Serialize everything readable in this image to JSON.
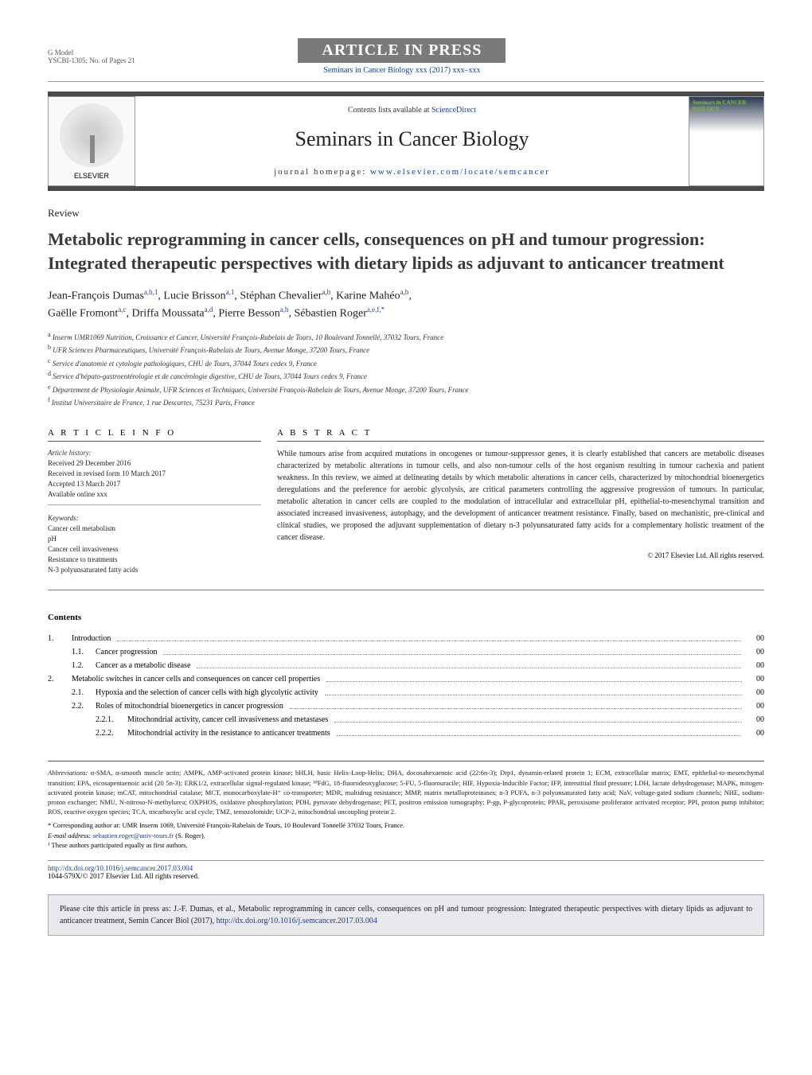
{
  "header": {
    "gmodel": "G Model",
    "model_ref": "YSCBI-1305;   No. of Pages 21",
    "aip": "ARTICLE IN PRESS",
    "citation_link": "Seminars in Cancer Biology xxx (2017) xxx–xxx"
  },
  "banner": {
    "contents_prefix": "Contents lists available at ",
    "contents_link": "ScienceDirect",
    "journal": "Seminars in Cancer Biology",
    "homepage_label": "journal homepage: ",
    "homepage_url": "www.elsevier.com/locate/semcancer",
    "elsevier": "ELSEVIER",
    "cover": "Seminars in CANCER BIOLOGY"
  },
  "article": {
    "review": "Review",
    "title": "Metabolic reprogramming in cancer cells, consequences on pH and tumour progression: Integrated therapeutic perspectives with dietary lipids as adjuvant to anticancer treatment",
    "authors_line1_a": "Jean-François Dumas",
    "authors_sup1": "a,b,1",
    "authors_line1_b": ", Lucie Brisson",
    "authors_sup2": "a,1",
    "authors_line1_c": ", Stéphan Chevalier",
    "authors_sup3": "a,b",
    "authors_line1_d": ", Karine Mahéo",
    "authors_sup4": "a,b",
    "authors_line1_e": ",",
    "authors_line2_a": "Gaëlle Fromont",
    "authors_sup5": "a,c",
    "authors_line2_b": ", Driffa Moussata",
    "authors_sup6": "a,d",
    "authors_line2_c": ", Pierre Besson",
    "authors_sup7": "a,b",
    "authors_line2_d": ", Sébastien Roger",
    "authors_sup8": "a,e,f,*"
  },
  "affiliations": {
    "a": "Inserm UMR1069 Nutrition, Croissance et Cancer, Université François-Rabelais de Tours, 10 Boulevard Tonnellé, 37032 Tours, France",
    "b": "UFR Sciences Pharmaceutiques, Université François-Rabelais de Tours, Avenue Monge, 37200 Tours, France",
    "c": "Service d'anatomie et cytologie pathologiques, CHU de Tours, 37044 Tours cedex 9, France",
    "d": "Service d'hépato-gastroentérologie et de cancérologie digestive, CHU de Tours, 37044 Tours cedex 9, France",
    "e": "Département de Physiologie Animale, UFR Sciences et Techniques, Université François-Rabelais de Tours, Avenue Monge, 37200 Tours, France",
    "f": "Institut Universitaire de France, 1 rue Descartes, 75231 Paris, France"
  },
  "info": {
    "heading": "A R T I C L E   I N F O",
    "history_label": "Article history:",
    "received": "Received 29 December 2016",
    "revised": "Received in revised form 10 March 2017",
    "accepted": "Accepted 13 March 2017",
    "online": "Available online xxx",
    "keywords_label": "Keywords:",
    "kw1": "Cancer cell metabolism",
    "kw2": "pH",
    "kw3": "Cancer cell invasiveness",
    "kw4": "Resistance to treatments",
    "kw5": "N-3 polyunsaturated fatty acids"
  },
  "abstract": {
    "heading": "A B S T R A C T",
    "text": "While tumours arise from acquired mutations in oncogenes or tumour-suppressor genes, it is clearly established that cancers are metabolic diseases characterized by metabolic alterations in tumour cells, and also non-tumour cells of the host organism resulting in tumour cachexia and patient weakness. In this review, we aimed at delineating details by which metabolic alterations in cancer cells, characterized by mitochondrial bioenergetics deregulations and the preference for aerobic glycolysis, are critical parameters controlling the aggressive progression of tumours. In particular, metabolic alteration in cancer cells are coupled to the modulation of intracellular and extracellular pH, epithelial-to-mesenchymal transition and associated increased invasiveness, autophagy, and the development of anticancer treatment resistance. Finally, based on mechanistic, pre-clinical and clinical studies, we proposed the adjuvant supplementation of dietary n-3 polyunsaturated fatty acids for a complementary holistic treatment of the cancer disease.",
    "copyright": "© 2017 Elsevier Ltd. All rights reserved."
  },
  "contents": {
    "heading": "Contents",
    "items": [
      {
        "level": 1,
        "num": "1.",
        "title": "Introduction",
        "page": "00"
      },
      {
        "level": 2,
        "num": "1.1.",
        "title": "Cancer progression",
        "page": "00"
      },
      {
        "level": 2,
        "num": "1.2.",
        "title": "Cancer as a metabolic disease",
        "page": "00"
      },
      {
        "level": 1,
        "num": "2.",
        "title": "Metabolic switches in cancer cells and consequences on cancer cell properties",
        "page": "00"
      },
      {
        "level": 2,
        "num": "2.1.",
        "title": "Hypoxia and the selection of cancer cells with high glycolytic activity",
        "page": "00"
      },
      {
        "level": 2,
        "num": "2.2.",
        "title": "Roles of mitochondrial bioenergetics in cancer progression",
        "page": "00"
      },
      {
        "level": 3,
        "num": "2.2.1.",
        "title": "Mitochondrial activity, cancer cell invasiveness and metastases",
        "page": "00"
      },
      {
        "level": 3,
        "num": "2.2.2.",
        "title": "Mitochondrial activity in the resistance to anticancer treatments",
        "page": "00"
      }
    ]
  },
  "footer": {
    "abbrev_label": "Abbreviations:",
    "abbrev_text": " α-SMA, α-smooth muscle actin; AMPK, AMP-activated protein kinase; bHLH, basic Helix-Loop-Helix; DHA, docosahexaenoic acid (22:6n-3); Drp1, dynamin-related protein 1; ECM, extracellular matrix; EMT, epithelial-to-mesenchymal transition; EPA, eicosapentaenoic acid (20 5n-3); ERK1/2, extracellular signal-regulated kinase; ¹⁸FdG, 18-fluorodeoxyglucose; 5-FU, 5-fluorouracile; HIF, Hypoxia-Inducible Factor; IFP, interstitial fluid pressure; LDH, lactate dehydrogenase; MAPK, mitogen-activated protein kinase; mCAT, mitochondrial catalase; MCT, monocarboxylate-H⁺ co-transporter; MDR, multidrug resistance; MMP, matrix metalloproteinases; n-3 PUFA, n-3 polyunsaturated fatty acid; NaV, voltage-gated sodium channels; NHE, sodium-proton exchanger; NMU, N-nitroso-N-methylurea; OXPHOS, oxidative phosphorylation; PDH, pyruvate dehydrogenase; PET, positron emission tomography; P-gp, P-glycoprotein; PPAR, peroxisome proliferator activated receptor; PPI, proton pump inhibitor; ROS, reactive oxygen species; TCA, tricarboxylic acid cycle; TMZ, temozolomide; UCP-2, mitochondrial uncoupling protein 2.",
    "corresp_star": "* Corresponding author at: UMR Inserm 1069, Université François-Rabelais de Tours, 10 Boulevard Tonnellé 37032 Tours, France.",
    "email_label": "E-mail address: ",
    "email": "sebastien.roger@univ-tours.fr",
    "email_suffix": " (S. Roger).",
    "note1": "¹ These authors participated equally as first authors.",
    "doi": "http://dx.doi.org/10.1016/j.semcancer.2017.03.004",
    "issn": "1044-579X/© 2017 Elsevier Ltd. All rights reserved."
  },
  "citebox": {
    "text_a": "Please cite this article in press as: J.-F. Dumas, et al., Metabolic reprogramming in cancer cells, consequences on pH and tumour progression: Integrated therapeutic perspectives with dietary lipids as adjuvant to anticancer treatment, Semin Cancer Biol (2017), ",
    "link": "http://dx.doi.org/10.1016/j.semcancer.2017.03.004"
  },
  "colors": {
    "link": "#1a3e8c",
    "bar": "#7a7a7a",
    "border_dark": "#4a4a4a"
  }
}
